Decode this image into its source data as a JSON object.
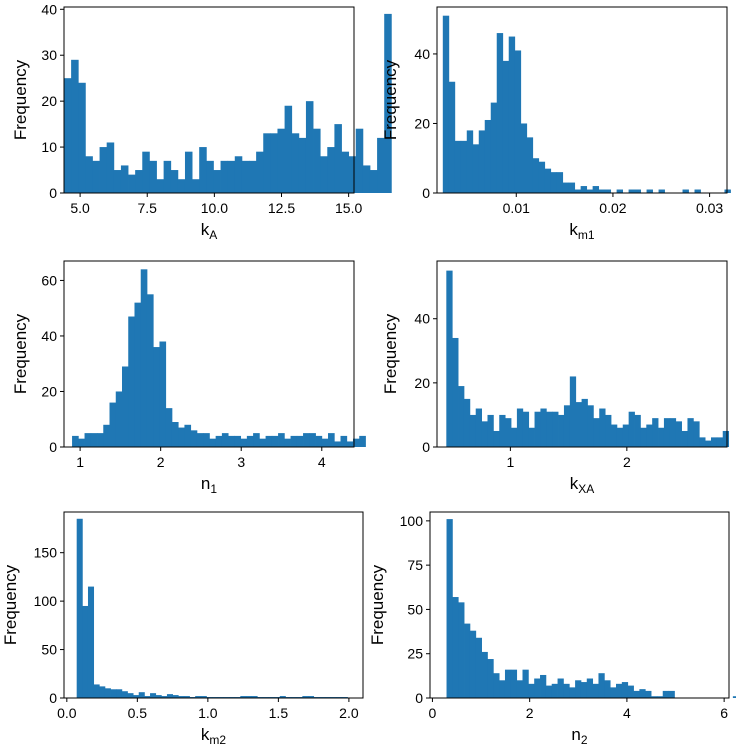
{
  "figure_type": "histogram grid",
  "bar_color": "#1f77b4",
  "chart_data": [
    {
      "type": "bar",
      "title": "",
      "xlabel": "k",
      "xlabel_sub": "A",
      "ylabel": "Frequency",
      "bin_start": 4.4,
      "bin_width": 0.265,
      "xlim": [
        4.4,
        15.2
      ],
      "ylim": [
        0,
        40.5
      ],
      "xticks": [
        5.0,
        7.5,
        10.0,
        12.5,
        15.0
      ],
      "xtick_labels": [
        "5.0",
        "7.5",
        "10.0",
        "12.5",
        "15.0"
      ],
      "yticks": [
        0,
        10,
        20,
        30,
        40
      ],
      "ytick_labels": [
        "0",
        "10",
        "20",
        "30",
        "40"
      ],
      "values": [
        25,
        29,
        24,
        8,
        7,
        10,
        11,
        5,
        6,
        4,
        5,
        9,
        7,
        3,
        7,
        5,
        3,
        9,
        3,
        10,
        7,
        5,
        7,
        7,
        8,
        7,
        7,
        9,
        13,
        13,
        14,
        19,
        13,
        12,
        20,
        14,
        8,
        10,
        15,
        9,
        8,
        14,
        6,
        5,
        12,
        39
      ]
    },
    {
      "type": "bar",
      "title": "",
      "xlabel": "k",
      "xlabel_sub": "m1",
      "ylabel": "Frequency",
      "bin_start": 0.0024,
      "bin_width": 0.00062,
      "xlim": [
        0.0018,
        0.0318
      ],
      "ylim": [
        0,
        53.5
      ],
      "xticks": [
        0.01,
        0.02,
        0.03
      ],
      "xtick_labels": [
        "0.01",
        "0.02",
        "0.03"
      ],
      "yticks": [
        0,
        20,
        40
      ],
      "ytick_labels": [
        "0",
        "20",
        "40"
      ],
      "values": [
        51,
        32,
        15,
        15,
        18,
        14,
        18,
        21,
        26,
        46,
        38,
        45,
        41,
        20,
        16,
        10,
        9,
        7,
        6,
        6,
        3,
        3,
        1,
        2,
        1,
        2,
        1,
        1,
        0,
        1,
        0,
        1,
        1,
        0,
        1,
        0,
        1,
        0,
        0,
        0,
        1,
        0,
        1,
        0,
        0,
        0,
        0,
        1
      ]
    },
    {
      "type": "bar",
      "title": "",
      "xlabel": "n",
      "xlabel_sub": "1",
      "ylabel": "Frequency",
      "bin_start": 0.9,
      "bin_width": 0.0775,
      "xlim": [
        0.8,
        4.4
      ],
      "ylim": [
        0,
        67
      ],
      "xticks": [
        1,
        2,
        3,
        4
      ],
      "xtick_labels": [
        "1",
        "2",
        "3",
        "4"
      ],
      "yticks": [
        0,
        20,
        40,
        60
      ],
      "ytick_labels": [
        "0",
        "20",
        "40",
        "60"
      ],
      "values": [
        4,
        3,
        5,
        5,
        5,
        8,
        16,
        20,
        29,
        47,
        52,
        64,
        55,
        36,
        38,
        14,
        9,
        7,
        8,
        6,
        5,
        5,
        3,
        4,
        5,
        4,
        4,
        3,
        4,
        5,
        3,
        4,
        4,
        5,
        3,
        4,
        4,
        5,
        5,
        4,
        3,
        5,
        2,
        4,
        2,
        3,
        4
      ]
    },
    {
      "type": "bar",
      "title": "",
      "xlabel": "k",
      "xlabel_sub": "XA",
      "ylabel": "Frequency",
      "bin_start": 0.45,
      "bin_width": 0.0505,
      "xlim": [
        0.37,
        2.86
      ],
      "ylim": [
        0,
        58
      ],
      "xticks": [
        1,
        2
      ],
      "xtick_labels": [
        "1",
        "2"
      ],
      "yticks": [
        0,
        20,
        40
      ],
      "ytick_labels": [
        "0",
        "20",
        "40"
      ],
      "values": [
        55,
        34,
        19,
        15,
        10,
        12,
        8,
        10,
        5,
        10,
        9,
        6,
        12,
        11,
        6,
        11,
        12,
        11,
        11,
        10,
        13,
        22,
        14,
        15,
        13,
        9,
        12,
        10,
        7,
        6,
        7,
        11,
        10,
        6,
        7,
        9,
        6,
        9,
        9,
        8,
        5,
        9,
        8,
        3,
        2,
        3,
        3,
        5
      ]
    },
    {
      "type": "bar",
      "title": "",
      "xlabel": "k",
      "xlabel_sub": "m2",
      "ylabel": "Frequency",
      "bin_start": 0.07,
      "bin_width": 0.04,
      "xlim": [
        -0.02,
        2.1
      ],
      "ylim": [
        0,
        192
      ],
      "xticks": [
        0.0,
        0.5,
        1.0,
        1.5,
        2.0
      ],
      "xtick_labels": [
        "0.0",
        "0.5",
        "1.0",
        "1.5",
        "2.0"
      ],
      "yticks": [
        0,
        50,
        100,
        150
      ],
      "ytick_labels": [
        "0",
        "50",
        "100",
        "150"
      ],
      "values": [
        185,
        95,
        115,
        14,
        12,
        10,
        9,
        9,
        7,
        5,
        3,
        6,
        2,
        5,
        3,
        2,
        4,
        3,
        2,
        2,
        1,
        2,
        2,
        1,
        1,
        1,
        1,
        1,
        1,
        2,
        2,
        2,
        1,
        1,
        1,
        1,
        2,
        1,
        1,
        1,
        2,
        2,
        1,
        1,
        1,
        1,
        1,
        1
      ]
    },
    {
      "type": "bar",
      "title": "",
      "xlabel": "n",
      "xlabel_sub": "2",
      "ylabel": "Frequency",
      "bin_start": 0.29,
      "bin_width": 0.1202,
      "xlim": [
        -0.05,
        6.1
      ],
      "ylim": [
        0,
        105
      ],
      "xticks": [
        0,
        2,
        4,
        6
      ],
      "xtick_labels": [
        "0",
        "2",
        "4",
        "6"
      ],
      "yticks": [
        0,
        25,
        50,
        75,
        100
      ],
      "ytick_labels": [
        "0",
        "25",
        "50",
        "75",
        "100"
      ],
      "values": [
        101,
        57,
        54,
        42,
        38,
        34,
        26,
        22,
        14,
        10,
        16,
        16,
        10,
        16,
        8,
        11,
        13,
        7,
        8,
        11,
        8,
        6,
        10,
        9,
        11,
        8,
        14,
        10,
        6,
        8,
        9,
        7,
        4,
        5,
        4,
        1,
        1,
        4,
        4,
        0,
        0,
        0,
        0,
        0,
        0,
        0,
        0,
        0,
        0,
        1,
        2
      ]
    }
  ]
}
